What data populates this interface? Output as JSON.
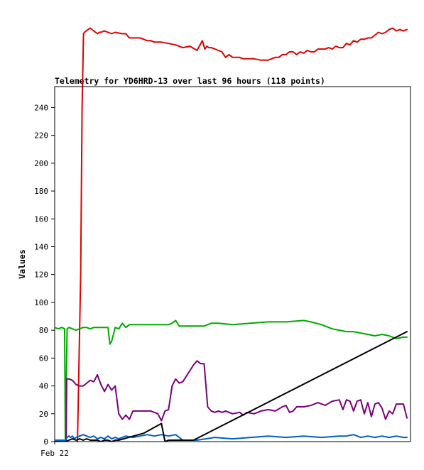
{
  "chart_data": {
    "type": "line",
    "title": "Telemetry for YD6HRD-13 over last 96 hours (118 points)",
    "xlabel": "",
    "ylabel": "Values",
    "x_tick_labels": [
      "Feb 22"
    ],
    "y_ticks": [
      0,
      20,
      40,
      60,
      80,
      100,
      120,
      140,
      160,
      180,
      200,
      220,
      240
    ],
    "xlim": [
      0,
      100
    ],
    "ylim": [
      0,
      255
    ],
    "grid": false,
    "legend": "none",
    "series": [
      {
        "color": "#e00000",
        "clip": false,
        "x": [
          6.4,
          7.3,
          7.7,
          8.1,
          8.4,
          8.8,
          10.0,
          12.0,
          12.5,
          13.0,
          14.0,
          16.0,
          17.0,
          19.0,
          20.0,
          21.0,
          22.0,
          24.0,
          25.0,
          26.0,
          27.0,
          28.0,
          29.0,
          30.0,
          32.0,
          34.0,
          36.0,
          38.0,
          40.0,
          41.5,
          42.2,
          42.8,
          43.3,
          44.0,
          45.0,
          46.0,
          47.0,
          48.0,
          49.0,
          50.0,
          51.0,
          52.0,
          53.0,
          54.0,
          55.0,
          56.0,
          58.0,
          60.0,
          62.0,
          63.0,
          64.0,
          65.0,
          66.0,
          67.0,
          68.0,
          69.0,
          70.0,
          71.0,
          72.0,
          73.0,
          74.0,
          75.0,
          76.0,
          77.0,
          78.0,
          79.0,
          80.0,
          81.0,
          82.0,
          83.0,
          84.0,
          85.0,
          86.0,
          87.0,
          88.0,
          89.0,
          90.0,
          91.0,
          92.0,
          93.0,
          94.0,
          95.0,
          96.0,
          97.0,
          98.0,
          99.0
        ],
        "y": [
          0,
          120,
          240,
          293,
          294,
          295,
          297,
          293,
          294,
          294,
          295,
          293,
          294,
          293,
          293,
          290,
          290,
          290,
          289,
          288,
          288,
          287,
          287,
          287,
          286,
          285,
          283,
          284,
          281,
          288,
          282,
          284,
          283,
          283,
          282,
          281,
          280,
          276,
          278,
          276,
          276,
          276,
          275,
          275,
          275,
          275,
          274,
          274,
          276,
          276,
          278,
          278,
          280,
          280,
          278,
          280,
          279,
          281,
          280,
          280,
          282,
          282,
          282,
          283,
          282,
          284,
          283,
          283,
          286,
          285,
          288,
          287,
          289,
          289,
          290,
          290,
          292,
          294,
          293,
          294,
          296,
          297,
          295,
          296,
          295,
          296
        ]
      },
      {
        "color": "#00a800",
        "clip": true,
        "x": [
          0,
          1,
          2,
          2.8,
          3.0,
          3.5,
          4.0,
          5.0,
          6.0,
          7.0,
          8.0,
          9.0,
          10.0,
          11.0,
          12.0,
          13.0,
          14.0,
          15.0,
          15.5,
          16.0,
          17.0,
          18.0,
          19.0,
          20.0,
          21.0,
          22.0,
          24.0,
          26.0,
          28.0,
          30.0,
          32.0,
          33.0,
          34.0,
          35.0,
          37.0,
          39.0,
          42.0,
          44.0,
          46.0,
          50.0,
          55.0,
          60.0,
          65.0,
          70.0,
          72.0,
          75.0,
          78.0,
          80.0,
          82.0,
          84.0,
          86.0,
          88.0,
          90.0,
          92.0,
          94.0,
          96.0,
          98.0,
          99.0
        ],
        "y": [
          82,
          81,
          82,
          81,
          0,
          81,
          82,
          81,
          80,
          81,
          82,
          82,
          81,
          82,
          82,
          82,
          82,
          82,
          70,
          72,
          82,
          81,
          85,
          82,
          84,
          84,
          84,
          84,
          84,
          84,
          84,
          85,
          87,
          83,
          83,
          83,
          83,
          85,
          85,
          84,
          85,
          86,
          86,
          87,
          86,
          84,
          81,
          80,
          79,
          79,
          78,
          77,
          76,
          77,
          76,
          74,
          75,
          75
        ]
      },
      {
        "color": "#7a007a",
        "clip": true,
        "x": [
          3.2,
          3.4,
          4.0,
          5.0,
          6.0,
          7.0,
          8.0,
          9.0,
          10.0,
          11.0,
          12.0,
          13.0,
          14.0,
          15.0,
          16.0,
          17.0,
          18.0,
          19.0,
          20.0,
          21.0,
          22.0,
          23.0,
          25.0,
          27.0,
          29.0,
          30.0,
          31.0,
          32.0,
          33.0,
          34.0,
          35.0,
          36.0,
          37.0,
          38.0,
          39.0,
          40.0,
          41.0,
          42.0,
          43.0,
          44.0,
          45.0,
          46.0,
          47.0,
          48.0,
          50.0,
          52.0,
          53.0,
          54.0,
          56.0,
          58.0,
          60.0,
          62.0,
          64.0,
          65.0,
          66.0,
          67.0,
          68.0,
          70.0,
          72.0,
          74.0,
          76.0,
          78.0,
          80.0,
          81.0,
          82.0,
          83.0,
          84.0,
          85.0,
          86.0,
          87.0,
          88.0,
          89.0,
          90.0,
          91.0,
          92.0,
          93.0,
          94.0,
          95.0,
          96.0,
          97.0,
          98.0,
          99.0
        ],
        "y": [
          0,
          45,
          45,
          44,
          41,
          40,
          40,
          42,
          44,
          43,
          48,
          41,
          36,
          41,
          37,
          40,
          20,
          16,
          19,
          16,
          22,
          22,
          22,
          22,
          20,
          15,
          22,
          23,
          40,
          45,
          42,
          43,
          47,
          51,
          55,
          58,
          56,
          56,
          25,
          22,
          21,
          22,
          21,
          22,
          20,
          21,
          19,
          21,
          20,
          22,
          23,
          22,
          25,
          26,
          21,
          22,
          25,
          25,
          26,
          28,
          26,
          29,
          30,
          23,
          30,
          29,
          22,
          29,
          30,
          20,
          28,
          18,
          27,
          28,
          24,
          16,
          22,
          20,
          27,
          27,
          27,
          17
        ]
      },
      {
        "color": "#0060c0",
        "clip": true,
        "x": [
          0,
          2,
          3,
          3.5,
          4,
          4.5,
          5,
          5.5,
          6,
          7,
          8,
          9,
          10,
          11,
          12,
          13,
          14,
          15,
          16,
          17,
          18,
          19,
          20,
          22,
          24,
          26,
          28,
          30,
          32,
          34,
          36,
          40,
          45,
          50,
          55,
          60,
          65,
          70,
          75,
          80,
          82,
          84,
          86,
          88,
          90,
          92,
          94,
          96,
          98,
          99
        ],
        "y": [
          1,
          1,
          1,
          3,
          4,
          3,
          4,
          2,
          3,
          4,
          5,
          4,
          3,
          4,
          2,
          3,
          2,
          4,
          2,
          3,
          2,
          3,
          4,
          3,
          4,
          5,
          4,
          5,
          4,
          5,
          1,
          1,
          3,
          2,
          3,
          4,
          3,
          4,
          3,
          4,
          4,
          5,
          3,
          4,
          3,
          4,
          3,
          4,
          3,
          3
        ]
      },
      {
        "color": "#000000",
        "clip": true,
        "x": [
          0,
          3,
          4,
          5,
          6,
          7,
          8,
          9,
          10,
          11,
          12,
          13,
          14,
          15,
          16,
          17,
          18,
          25,
          30,
          31,
          32,
          39,
          99
        ],
        "y": [
          0,
          0,
          1,
          2,
          1,
          2,
          1,
          2,
          1,
          1,
          1,
          0,
          1,
          1,
          0,
          1,
          1,
          6,
          13,
          0,
          1,
          1,
          79
        ]
      }
    ]
  }
}
